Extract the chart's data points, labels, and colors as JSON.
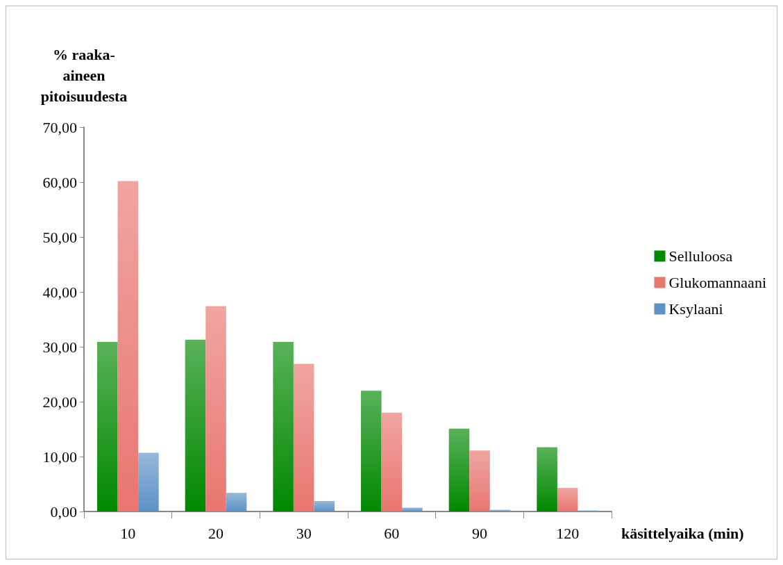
{
  "chart_data": {
    "type": "bar",
    "ylabel": "% raaka-\naineen\npitoisuudesta",
    "xlabel": "käsittelyaika (min)",
    "categories": [
      "10",
      "20",
      "30",
      "60",
      "90",
      "120"
    ],
    "series": [
      {
        "name": "Selluloosa",
        "color": "#008800",
        "values": [
          30.9,
          31.3,
          30.9,
          22.0,
          15.1,
          11.7
        ]
      },
      {
        "name": "Glukomannaani",
        "color": "#e8766f",
        "values": [
          60.2,
          37.4,
          26.9,
          18.0,
          11.1,
          4.3
        ]
      },
      {
        "name": "Ksylaani",
        "color": "#5e92c6",
        "values": [
          10.7,
          3.4,
          1.9,
          0.7,
          0.3,
          0.2
        ]
      }
    ],
    "ylim": [
      0,
      70
    ],
    "yticks": [
      {
        "value": 0,
        "label": "0,00"
      },
      {
        "value": 10,
        "label": "10,00"
      },
      {
        "value": 20,
        "label": "20,00"
      },
      {
        "value": 30,
        "label": "30,00"
      },
      {
        "value": 40,
        "label": "40,00"
      },
      {
        "value": 50,
        "label": "50,00"
      },
      {
        "value": 60,
        "label": "60,00"
      },
      {
        "value": 70,
        "label": "70,00"
      }
    ],
    "grid": false,
    "legend": "right"
  }
}
